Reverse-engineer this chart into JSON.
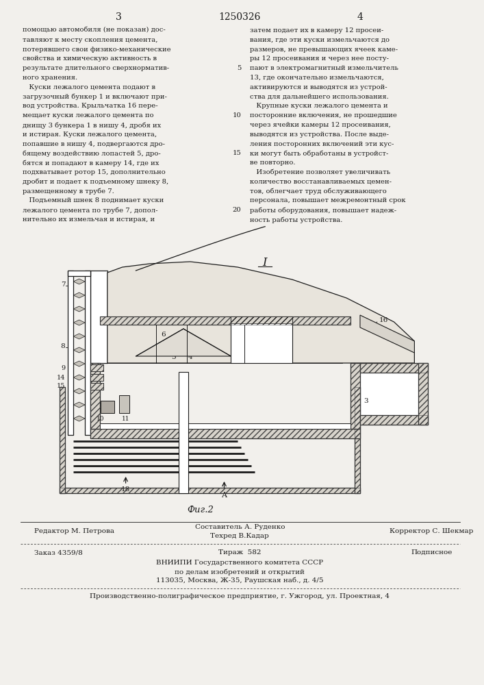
{
  "page_width": 7.07,
  "page_height": 10.0,
  "bg_color": "#f2f0ec",
  "text_color": "#1a1a1a",
  "header_num_left": "3",
  "header_patent": "1250326",
  "header_num_right": "4",
  "col_left_lines": [
    "помощью автомобиля (не показан) дос-",
    "тавляют к месту скопления цемента,",
    "потерявшего свои физико-механические",
    "свойства и химическую активность в",
    "результате длительного сверхнорматив-",
    "ного хранения.",
    "   Куски лежалого цемента подают в",
    "загрузочный бункер 1 и включают при-",
    "вод устройства. Крыльчатка 16 пере-",
    "мещает куски лежалого цемента по",
    "днищу 3 бункера 1 в нишу 4, дробя их",
    "и истирая. Куски лежалого цемента,",
    "попавшие в нишу 4, подвергаются дро-",
    "бящему воздействию лопастей 5, дро-",
    "бятся и попадают в камеру 14, где их",
    "подхватывает ротор 15, дополнительно",
    "дробит и подает к подъемному шнеку 8,",
    "размещенному в трубе 7.",
    "   Подъемный шнек 8 поднимает куски",
    "лежалого цемента по трубе 7, допол-",
    "нительно их измельчая и истирая, и"
  ],
  "col_right_lines": [
    "затем подает их в камеру 12 просеи-",
    "вания, где эти куски измельчаются до",
    "размеров, не превышающих ячеек каме-",
    "ры 12 просеивания и через нее посту-",
    "пают в электромагнитный измельчитель",
    "13, где окончательно измельчаются,",
    "активируются и выводятся из устрой-",
    "ства для дальнейшего использования.",
    "   Крупные куски лежалого цемента и",
    "посторонние включения, не прошедшие",
    "через ячейки камеры 12 просеивания,",
    "выводятся из устройства. После выде-",
    "ления посторонних включений эти кус-",
    "ки могут быть обработаны в устройст-",
    "ве повторно.",
    "   Изобретение позволяет увеличивать",
    "количество восстанавливаемых цемен-",
    "тов, облегчает труд обслуживающего",
    "персонала, повышает межремонтный срок",
    "работы оборудования, повышает надеж-",
    "ность работы устройства."
  ],
  "fig_label": "Фиг.2",
  "fig_number": "I",
  "footer_editor": "Редактор М. Петрова",
  "footer_compiler": "Составитель А. Руденко",
  "footer_techred": "Техред В.Кадар",
  "footer_corrector": "Корректор С. Шекмар",
  "footer_order": "Заказ 4359/8",
  "footer_tirazh": "Тираж  582",
  "footer_podpisnoe": "Подписное",
  "footer_vniip1": "ВНИИПИ Государственного комитета СССР",
  "footer_vniip2": "по делам изобретений и открытий",
  "footer_vniip3": "113035, Москва, Ж-35, Раушская наб., д. 4/5",
  "footer_prod": "Производственно-полиграфическое предприятие, г. Ужгород, ул. Проектная, 4"
}
